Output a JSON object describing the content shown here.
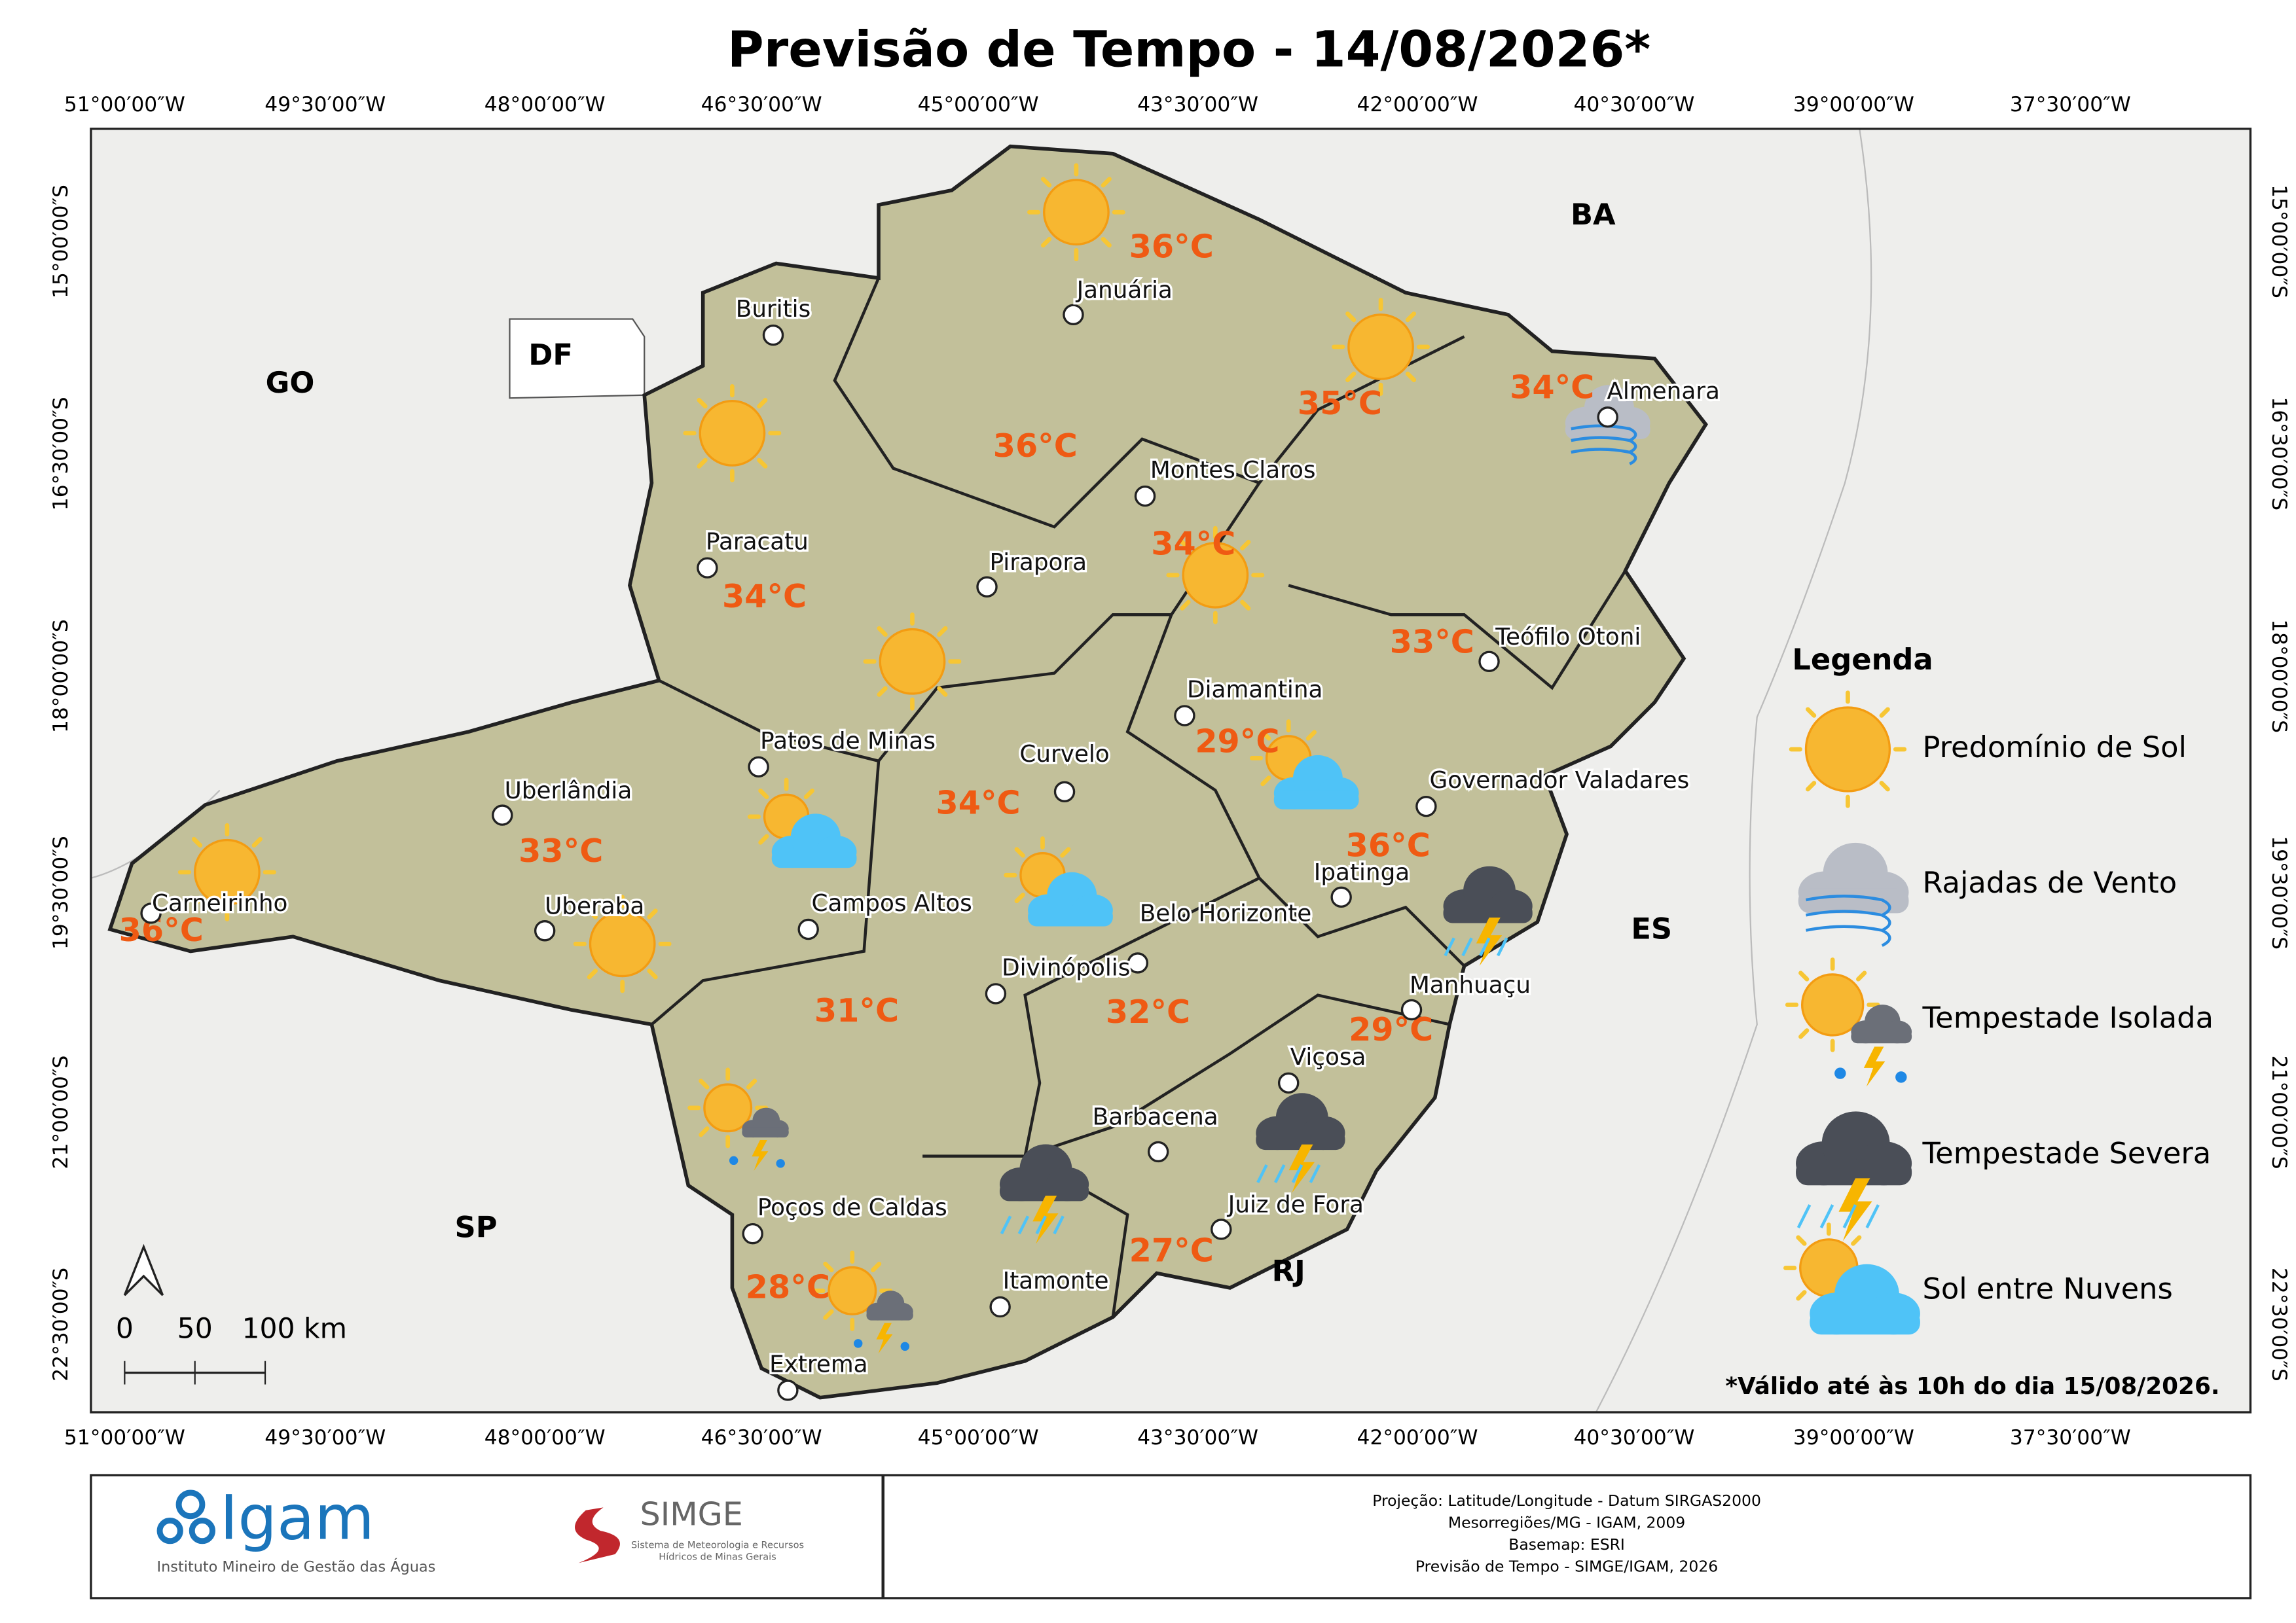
{
  "title": "Previsão de Tempo - 14/08/2026*",
  "longitude_labels": [
    "51°00′00″W",
    "49°30′00″W",
    "48°00′00″W",
    "46°30′00″W",
    "45°00′00″W",
    "43°30′00″W",
    "42°00′00″W",
    "40°30′00″W",
    "39°00′00″W",
    "37°30′00″W"
  ],
  "latitude_labels": [
    "15°00′00″S",
    "16°30′00″S",
    "18°00′00″S",
    "19°30′00″S",
    "21°00′00″S",
    "22°30′00″S"
  ],
  "states": [
    "GO",
    "DF",
    "BA",
    "ES",
    "SP",
    "RJ"
  ],
  "cities": [
    "Buritis",
    "Januária",
    "Almenara",
    "Montes Claros",
    "Paracatu",
    "Pirapora",
    "Teófilo Otoni",
    "Diamantina",
    "Patos de Minas",
    "Curvelo",
    "Governador Valadares",
    "Uberlândia",
    "Carneirinho",
    "Uberaba",
    "Campos Altos",
    "Ipatinga",
    "Belo Horizonte",
    "Divinópolis",
    "Manhuaçu",
    "Viçosa",
    "Barbacena",
    "Poços de Caldas",
    "Juiz de Fora",
    "Itamonte",
    "Extrema"
  ],
  "temperatures": [
    "36°C",
    "35°C",
    "34°C",
    "36°C",
    "34°C",
    "34°C",
    "33°C",
    "29°C",
    "34°C",
    "36°C",
    "33°C",
    "36°C",
    "31°C",
    "32°C",
    "29°C",
    "27°C",
    "28°C"
  ],
  "legend": {
    "title": "Legenda",
    "items": [
      "Predomínio de Sol",
      "Rajadas de Vento",
      "Tempestade Isolada",
      "Tempestade Severa",
      "Sol entre Nuvens"
    ]
  },
  "scale_bar": [
    "0",
    "50",
    "100 km"
  ],
  "validity_note": "*Válido até às 10h do dia 15/08/2026.",
  "footer": {
    "igam": "Igam",
    "igam_subtitle": "Instituto Mineiro de Gestão das Águas",
    "simge": "SIMGE",
    "simge_subtitle": [
      "Sistema de Meteorologia e Recursos",
      "Hídricos de Minas Gerais"
    ],
    "credits": [
      "Projeção: Latitude/Longitude - Datum SIRGAS2000",
      "Mesorregiões/MG - IGAM, 2009",
      "Basemap: ESRI",
      "Previsão de Tempo - SIMGE/IGAM, 2026"
    ]
  }
}
